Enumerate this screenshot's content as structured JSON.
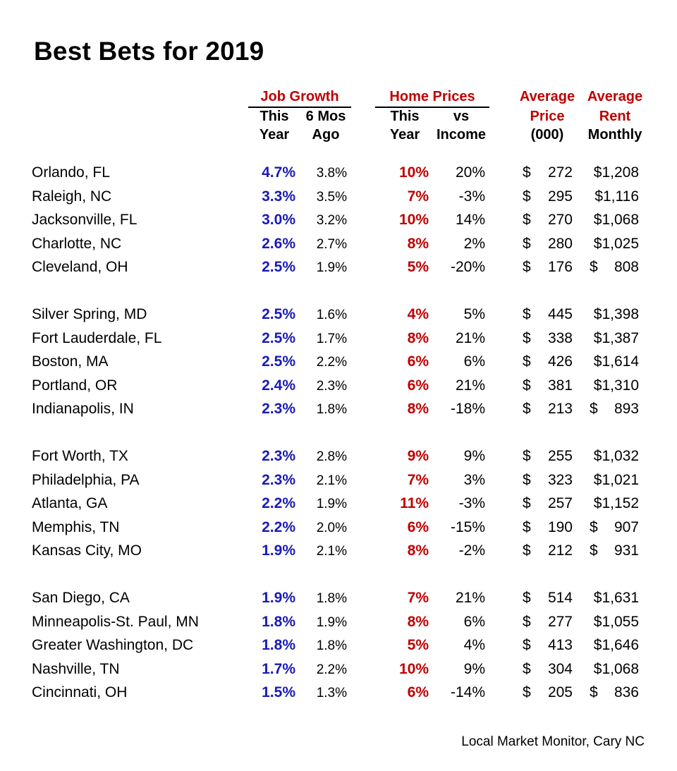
{
  "title": "Best Bets for 2019",
  "colors": {
    "job_growth": "#1a1ab8",
    "home_prices": "#c00000",
    "header": "#c00000"
  },
  "header": {
    "job_growth": "Job Growth",
    "home_prices": "Home Prices",
    "avg_price": "Average",
    "avg_rent": "Average",
    "jg_this_1": "This",
    "jg_this_2": "Year",
    "jg_6mos_1": "6 Mos",
    "jg_6mos_2": "Ago",
    "hp_this_1": "This",
    "hp_this_2": "Year",
    "hp_vs_1": "vs",
    "hp_vs_2": "Income",
    "price_1": "Price",
    "price_2": "(000)",
    "rent_1": "Rent",
    "rent_2": "Monthly"
  },
  "rows": [
    {
      "city": "Orlando, FL",
      "jg": "4.7%",
      "jg6": "3.8%",
      "hp": "10%",
      "inc": "20%",
      "dollar": "$",
      "price": "272",
      "rent_sign": "",
      "rent": "$1,208"
    },
    {
      "city": "Raleigh, NC",
      "jg": "3.3%",
      "jg6": "3.5%",
      "hp": "7%",
      "inc": "-3%",
      "dollar": "$",
      "price": "295",
      "rent_sign": "",
      "rent": "$1,116"
    },
    {
      "city": "Jacksonville, FL",
      "jg": "3.0%",
      "jg6": "3.2%",
      "hp": "10%",
      "inc": "14%",
      "dollar": "$",
      "price": "270",
      "rent_sign": "",
      "rent": "$1,068"
    },
    {
      "city": "Charlotte, NC",
      "jg": "2.6%",
      "jg6": "2.7%",
      "hp": "8%",
      "inc": "2%",
      "dollar": "$",
      "price": "280",
      "rent_sign": "",
      "rent": "$1,025"
    },
    {
      "city": "Cleveland, OH",
      "jg": "2.5%",
      "jg6": "1.9%",
      "hp": "5%",
      "inc": "-20%",
      "dollar": "$",
      "price": "176",
      "rent_sign": "$",
      "rent": "808"
    },
    {
      "city": "Silver Spring, MD",
      "jg": "2.5%",
      "jg6": "1.6%",
      "hp": "4%",
      "inc": "5%",
      "dollar": "$",
      "price": "445",
      "rent_sign": "",
      "rent": "$1,398"
    },
    {
      "city": "Fort Lauderdale, FL",
      "jg": "2.5%",
      "jg6": "1.7%",
      "hp": "8%",
      "inc": "21%",
      "dollar": "$",
      "price": "338",
      "rent_sign": "",
      "rent": "$1,387"
    },
    {
      "city": "Boston, MA",
      "jg": "2.5%",
      "jg6": "2.2%",
      "hp": "6%",
      "inc": "6%",
      "dollar": "$",
      "price": "426",
      "rent_sign": "",
      "rent": "$1,614"
    },
    {
      "city": "Portland, OR",
      "jg": "2.4%",
      "jg6": "2.3%",
      "hp": "6%",
      "inc": "21%",
      "dollar": "$",
      "price": "381",
      "rent_sign": "",
      "rent": "$1,310"
    },
    {
      "city": "Indianapolis, IN",
      "jg": "2.3%",
      "jg6": "1.8%",
      "hp": "8%",
      "inc": "-18%",
      "dollar": "$",
      "price": "213",
      "rent_sign": "$",
      "rent": "893"
    },
    {
      "city": "Fort Worth, TX",
      "jg": "2.3%",
      "jg6": "2.8%",
      "hp": "9%",
      "inc": "9%",
      "dollar": "$",
      "price": "255",
      "rent_sign": "",
      "rent": "$1,032"
    },
    {
      "city": "Philadelphia, PA",
      "jg": "2.3%",
      "jg6": "2.1%",
      "hp": "7%",
      "inc": "3%",
      "dollar": "$",
      "price": "323",
      "rent_sign": "",
      "rent": "$1,021"
    },
    {
      "city": "Atlanta, GA",
      "jg": "2.2%",
      "jg6": "1.9%",
      "hp": "11%",
      "inc": "-3%",
      "dollar": "$",
      "price": "257",
      "rent_sign": "",
      "rent": "$1,152"
    },
    {
      "city": "Memphis, TN",
      "jg": "2.2%",
      "jg6": "2.0%",
      "hp": "6%",
      "inc": "-15%",
      "dollar": "$",
      "price": "190",
      "rent_sign": "$",
      "rent": "907"
    },
    {
      "city": "Kansas City, MO",
      "jg": "1.9%",
      "jg6": "2.1%",
      "hp": "8%",
      "inc": "-2%",
      "dollar": "$",
      "price": "212",
      "rent_sign": "$",
      "rent": "931"
    },
    {
      "city": "San Diego, CA",
      "jg": "1.9%",
      "jg6": "1.8%",
      "hp": "7%",
      "inc": "21%",
      "dollar": "$",
      "price": "514",
      "rent_sign": "",
      "rent": "$1,631"
    },
    {
      "city": "Minneapolis-St. Paul, MN",
      "jg": "1.8%",
      "jg6": "1.9%",
      "hp": "8%",
      "inc": "6%",
      "dollar": "$",
      "price": "277",
      "rent_sign": "",
      "rent": "$1,055"
    },
    {
      "city": "Greater Washington, DC",
      "jg": "1.8%",
      "jg6": "1.8%",
      "hp": "5%",
      "inc": "4%",
      "dollar": "$",
      "price": "413",
      "rent_sign": "",
      "rent": "$1,646"
    },
    {
      "city": "Nashville, TN",
      "jg": "1.7%",
      "jg6": "2.2%",
      "hp": "10%",
      "inc": "9%",
      "dollar": "$",
      "price": "304",
      "rent_sign": "",
      "rent": "$1,068"
    },
    {
      "city": "Cincinnati, OH",
      "jg": "1.5%",
      "jg6": "1.3%",
      "hp": "6%",
      "inc": "-14%",
      "dollar": "$",
      "price": "205",
      "rent_sign": "$",
      "rent": "836"
    }
  ],
  "source": "Local Market Monitor, Cary NC"
}
